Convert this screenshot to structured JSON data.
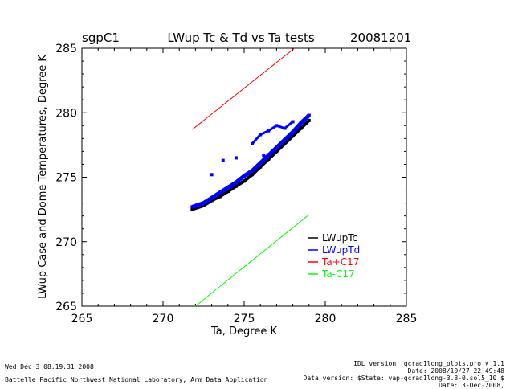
{
  "header": {
    "site": "sgpC1",
    "title": "LWup Tc & Td vs Ta tests",
    "date": "20081201"
  },
  "footer": {
    "left": [
      "Wed Dec  3 08:19:31 2008",
      "Battelle Pacific Northwest National Laboratory, Arm Data Application"
    ],
    "right": [
      "IDL version: qcrad1long_plots.pro,v 1.1",
      "Date: 2008/10/27 22:49:48",
      "Data version: $State: vap-qcrad1long-3.8-0.sol5_10 $",
      "Date: 3-Dec-2008,"
    ]
  },
  "chart_data": {
    "type": "scatter",
    "title": "LWup Tc & Td vs Ta tests",
    "xlabel": "Ta, Degree K",
    "ylabel": "LWup Case and Dome Temperatures, Degree K",
    "xlim": [
      265,
      285
    ],
    "ylim": [
      265,
      285
    ],
    "xticks": [
      265,
      270,
      275,
      280,
      285
    ],
    "yticks": [
      265,
      270,
      275,
      280,
      285
    ],
    "legend_position": "lower-right",
    "series": [
      {
        "name": "LWupTc",
        "type": "scatter",
        "color": "#000000",
        "x": [
          271.8,
          272.5,
          273.0,
          273.5,
          274.0,
          274.5,
          275.0,
          275.5,
          276.0,
          276.5,
          277.0,
          277.5,
          278.0,
          278.5,
          279.0
        ],
        "y": [
          272.5,
          272.8,
          273.2,
          273.5,
          273.9,
          274.3,
          274.7,
          275.2,
          275.8,
          276.4,
          277.0,
          277.6,
          278.2,
          278.8,
          279.4
        ]
      },
      {
        "name": "LWupTd",
        "type": "scatter",
        "color": "#0000ff",
        "x": [
          271.8,
          272.5,
          273.0,
          273.5,
          274.0,
          274.5,
          275.0,
          275.5,
          276.0,
          276.5,
          277.0,
          277.5,
          278.0,
          278.5,
          279.0,
          275.5,
          276.0,
          276.5,
          277.0,
          277.5,
          278.0,
          273.0,
          273.7,
          274.5,
          276.2
        ],
        "y": [
          272.7,
          273.0,
          273.4,
          273.8,
          274.2,
          274.6,
          275.1,
          275.5,
          276.1,
          276.7,
          277.3,
          277.9,
          278.5,
          279.2,
          279.8,
          277.6,
          278.3,
          278.6,
          279.0,
          278.8,
          279.3,
          275.2,
          276.3,
          276.5,
          276.7
        ]
      },
      {
        "name": "Ta+C17",
        "type": "line",
        "color": "#ff0000",
        "x": [
          271.8,
          279.0
        ],
        "y": [
          278.7,
          285.9
        ]
      },
      {
        "name": "Ta-C17",
        "type": "line",
        "color": "#00ff00",
        "x": [
          271.8,
          279.0
        ],
        "y": [
          264.8,
          272.1
        ]
      }
    ]
  }
}
